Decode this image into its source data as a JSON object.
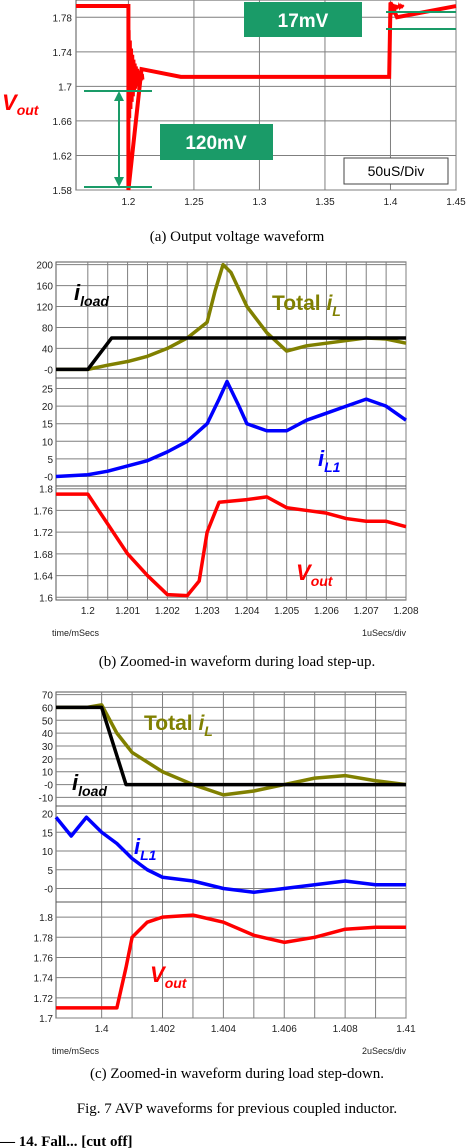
{
  "chart_data": [
    {
      "type": "line",
      "caption": "(a) Output voltage waveform",
      "x_ticks": [
        "1.2",
        "1.25",
        "1.3",
        "1.35",
        "1.4",
        "1.45"
      ],
      "y_ticks": [
        "1.78",
        "1.74",
        "1.7",
        "1.66",
        "1.62",
        "1.58"
      ],
      "xlim": [
        1.16,
        1.45
      ],
      "ylim": [
        1.58,
        1.8
      ],
      "scale_note": "50uS/Div",
      "annotations": [
        {
          "label": "17mV",
          "color": "#1a9b68"
        },
        {
          "label": "120mV",
          "color": "#1a9b68"
        }
      ],
      "series": [
        {
          "name_main": "V",
          "name_sub": "out",
          "color": "#ff0000",
          "x": [
            1.16,
            1.2,
            1.2,
            1.21,
            1.24,
            1.3,
            1.35,
            1.399,
            1.4,
            1.405,
            1.45
          ],
          "y": [
            1.793,
            1.793,
            1.58,
            1.72,
            1.711,
            1.711,
            1.711,
            1.711,
            1.797,
            1.78,
            1.793
          ]
        }
      ]
    },
    {
      "type": "line",
      "caption": "(b) Zoomed-in waveform during load step-up.",
      "x_ticks": [
        "1.2",
        "1.201",
        "1.202",
        "1.203",
        "1.204",
        "1.205",
        "1.206",
        "1.207",
        "1.208"
      ],
      "xlim": [
        1.1992,
        1.208
      ],
      "x_note_left": "time/mSecs",
      "x_note_right": "1uSecs/div",
      "panels": [
        {
          "y_ticks": [
            "200",
            "160",
            "120",
            "80",
            "40",
            "-0"
          ],
          "ylim": [
            -5,
            205
          ],
          "series": [
            {
              "name_main": "Total ",
              "name_sub": "L",
              "name_pre": "i",
              "color": "#808000",
              "x": [
                1.1992,
                1.2,
                1.2005,
                1.201,
                1.2015,
                1.202,
                1.2025,
                1.203,
                1.2032,
                1.2034,
                1.2036,
                1.204,
                1.2045,
                1.205,
                1.2055,
                1.206,
                1.2065,
                1.207,
                1.2075,
                1.208
              ],
              "y": [
                0,
                0,
                8,
                15,
                25,
                40,
                60,
                90,
                150,
                200,
                185,
                120,
                70,
                35,
                45,
                50,
                55,
                60,
                58,
                50
              ]
            },
            {
              "name_main": "",
              "name_sub": "load",
              "name_pre": "i",
              "color": "#000000",
              "x": [
                1.1992,
                1.2,
                1.2006,
                1.208
              ],
              "y": [
                0,
                0,
                60,
                60
              ]
            }
          ]
        },
        {
          "y_ticks": [
            "25",
            "20",
            "15",
            "10",
            "5",
            "-0"
          ],
          "ylim": [
            -1,
            28
          ],
          "series": [
            {
              "name_main": "",
              "name_sub": "L1",
              "name_pre": "i",
              "color": "#0000ff",
              "x": [
                1.1992,
                1.2,
                1.2005,
                1.201,
                1.2015,
                1.202,
                1.2025,
                1.203,
                1.2033,
                1.2035,
                1.2038,
                1.204,
                1.2045,
                1.205,
                1.2055,
                1.206,
                1.2065,
                1.207,
                1.2075,
                1.208
              ],
              "y": [
                0,
                0.5,
                1.5,
                3,
                4.5,
                7,
                10,
                15,
                22,
                27,
                20,
                15,
                13,
                13,
                16,
                18,
                20,
                22,
                20,
                16
              ]
            }
          ]
        },
        {
          "y_ticks": [
            "1.8",
            "1.76",
            "1.72",
            "1.68",
            "1.64",
            "1.6"
          ],
          "ylim": [
            1.595,
            1.805
          ],
          "series": [
            {
              "name_main": "V",
              "name_sub": "out",
              "name_pre": "",
              "color": "#ff0000",
              "x": [
                1.1992,
                1.2,
                1.2005,
                1.201,
                1.2015,
                1.202,
                1.2025,
                1.2028,
                1.203,
                1.2033,
                1.204,
                1.2045,
                1.205,
                1.2055,
                1.206,
                1.2065,
                1.207,
                1.2075,
                1.208
              ],
              "y": [
                1.79,
                1.79,
                1.735,
                1.68,
                1.64,
                1.605,
                1.603,
                1.63,
                1.72,
                1.775,
                1.78,
                1.785,
                1.765,
                1.76,
                1.755,
                1.745,
                1.74,
                1.74,
                1.73
              ]
            }
          ]
        }
      ]
    },
    {
      "type": "line",
      "caption": "(c) Zoomed-in waveform during load step-down.",
      "x_ticks": [
        "1.4",
        "1.402",
        "1.404",
        "1.406",
        "1.408",
        "1.41"
      ],
      "xlim": [
        1.3985,
        1.41
      ],
      "x_note_left": "time/mSecs",
      "x_note_right": "2uSecs/div",
      "panels": [
        {
          "y_ticks": [
            "70",
            "60",
            "50",
            "40",
            "30",
            "20",
            "10",
            "-0",
            "-10"
          ],
          "ylim": [
            -12,
            72
          ],
          "series": [
            {
              "name_main": "Total ",
              "name_sub": "L",
              "name_pre": "i",
              "color": "#808000",
              "x": [
                1.3985,
                1.3995,
                1.4,
                1.4005,
                1.401,
                1.402,
                1.403,
                1.404,
                1.405,
                1.406,
                1.407,
                1.408,
                1.409,
                1.41
              ],
              "y": [
                60,
                60,
                62,
                40,
                25,
                10,
                0,
                -8,
                -5,
                0,
                5,
                7,
                3,
                0
              ]
            },
            {
              "name_main": "",
              "name_sub": "load",
              "name_pre": "i",
              "color": "#000000",
              "x": [
                1.3985,
                1.4,
                1.4008,
                1.41
              ],
              "y": [
                60,
                60,
                0,
                0
              ]
            }
          ]
        },
        {
          "y_ticks": [
            "20",
            "15",
            "10",
            "5",
            "-0"
          ],
          "ylim": [
            -2,
            22
          ],
          "series": [
            {
              "name_main": "",
              "name_sub": "L1",
              "name_pre": "i",
              "color": "#0000ff",
              "x": [
                1.3985,
                1.399,
                1.3995,
                1.4,
                1.4005,
                1.401,
                1.4015,
                1.402,
                1.403,
                1.404,
                1.405,
                1.406,
                1.407,
                1.408,
                1.409,
                1.41
              ],
              "y": [
                19,
                14,
                19,
                15,
                12,
                8,
                5,
                3,
                2,
                0,
                -1,
                0,
                1,
                2,
                1,
                1
              ]
            }
          ]
        },
        {
          "y_ticks": [
            "1.8",
            "1.78",
            "1.76",
            "1.74",
            "1.72",
            "1.7"
          ],
          "ylim": [
            1.7,
            1.815
          ],
          "series": [
            {
              "name_main": "V",
              "name_sub": "out",
              "name_pre": "",
              "color": "#ff0000",
              "x": [
                1.3985,
                1.3995,
                1.4005,
                1.4008,
                1.401,
                1.4015,
                1.402,
                1.403,
                1.404,
                1.405,
                1.406,
                1.407,
                1.408,
                1.409,
                1.41
              ],
              "y": [
                1.71,
                1.71,
                1.71,
                1.75,
                1.78,
                1.795,
                1.8,
                1.802,
                1.795,
                1.782,
                1.775,
                1.78,
                1.788,
                1.79,
                1.79
              ]
            }
          ]
        }
      ]
    }
  ],
  "figure_caption": "Fig. 7 AVP waveforms for previous coupled inductor.",
  "bottom_cut_text": "— 14. Fall... [cut off]"
}
